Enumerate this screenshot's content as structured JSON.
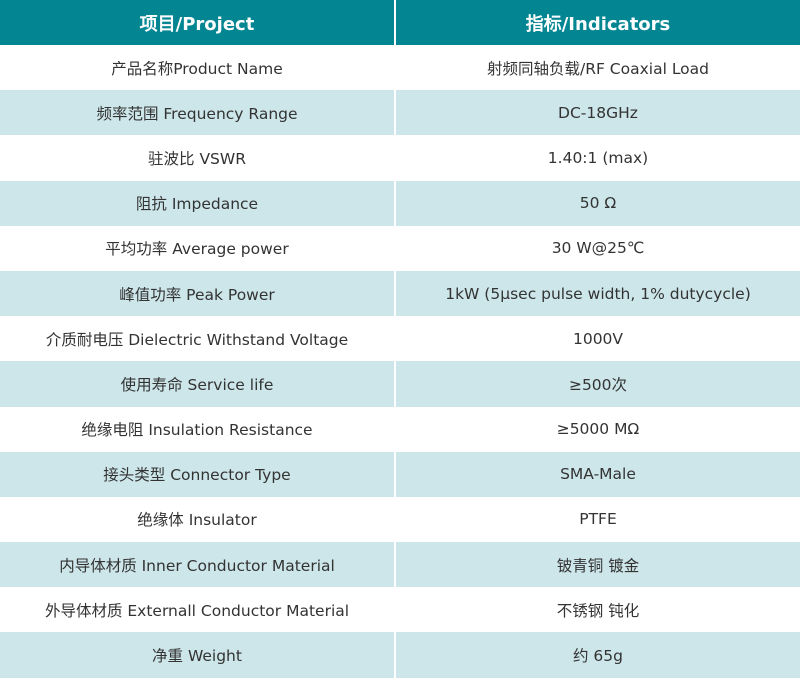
{
  "header": {
    "project": "项目/Project",
    "indicators": "指标/Indicators"
  },
  "colors": {
    "header_bg": "#038592",
    "alt_row_bg": "#cde6ea"
  },
  "rows": [
    {
      "project": "产品名称Product Name",
      "indicator": "射频同轴负载/RF Coaxial Load"
    },
    {
      "project": "频率范围 Frequency Range",
      "indicator": "DC-18GHz"
    },
    {
      "project": "驻波比 VSWR",
      "indicator": "1.40:1 (max)"
    },
    {
      "project": "阻抗 Impedance",
      "indicator": "50 Ω"
    },
    {
      "project": "平均功率 Average power",
      "indicator": "30 W@25℃"
    },
    {
      "project": "峰值功率 Peak Power",
      "indicator": "1kW (5μsec pulse width, 1% dutycycle)"
    },
    {
      "project": "介质耐电压 Dielectric Withstand Voltage",
      "indicator": "1000V"
    },
    {
      "project": "使用寿命 Service life",
      "indicator": "≥500次"
    },
    {
      "project": "绝缘电阻 Insulation Resistance",
      "indicator": "≥5000 MΩ"
    },
    {
      "project": "接头类型 Connector Type",
      "indicator": "SMA-Male"
    },
    {
      "project": "绝缘体 Insulator",
      "indicator": "PTFE"
    },
    {
      "project": "内导体材质 Inner Conductor Material",
      "indicator": "铍青铜 镀金"
    },
    {
      "project": "外导体材质 Externall Conductor Material",
      "indicator": "不锈钢 钝化"
    },
    {
      "project": "净重 Weight",
      "indicator": "约 65g"
    }
  ]
}
